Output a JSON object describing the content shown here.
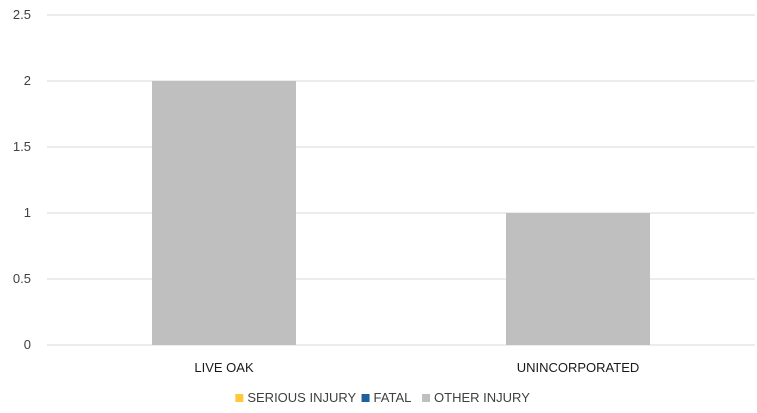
{
  "chart_data": {
    "type": "bar",
    "categories": [
      "LIVE OAK",
      "UNINCORPORATED"
    ],
    "series": [
      {
        "name": "SERIOUS INJURY",
        "color": "#ffc83d",
        "values": [
          0,
          0
        ]
      },
      {
        "name": "FATAL",
        "color": "#1f5f9e",
        "values": [
          0,
          0
        ]
      },
      {
        "name": "OTHER INJURY",
        "color": "#bfbfbf",
        "values": [
          2,
          1
        ]
      }
    ],
    "ylim": [
      0,
      2.5
    ],
    "yticks": [
      "0",
      "0.5",
      "1",
      "1.5",
      "2",
      "2.5"
    ],
    "grid": true,
    "legend_position": "bottom"
  }
}
